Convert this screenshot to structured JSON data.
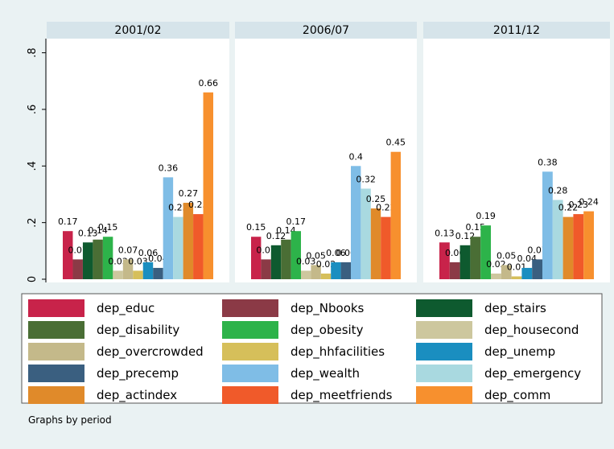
{
  "chart_data": {
    "type": "bar",
    "note": "Graphs by period",
    "legend": "bottom",
    "categories": [
      "2001/02",
      "2006/07",
      "2011/12"
    ],
    "ylim": [
      0,
      0.85
    ],
    "yticks": [
      {
        "value": 0,
        "label": "0"
      },
      {
        "value": 0.2,
        "label": ".2"
      },
      {
        "value": 0.4,
        "label": ".4"
      },
      {
        "value": 0.6,
        "label": ".6"
      },
      {
        "value": 0.8,
        "label": ".8"
      }
    ],
    "series": [
      {
        "name": "dep_educ",
        "color": "#c8234a",
        "values": [
          0.17,
          0.15,
          0.13
        ]
      },
      {
        "name": "dep_Nbooks",
        "color": "#8b3a46",
        "values": [
          0.07,
          0.07,
          0.06
        ]
      },
      {
        "name": "dep_stairs",
        "color": "#0e5a2f",
        "values": [
          0.13,
          0.12,
          0.12
        ]
      },
      {
        "name": "dep_disability",
        "color": "#4a6e35",
        "values": [
          0.14,
          0.14,
          0.15
        ]
      },
      {
        "name": "dep_obesity",
        "color": "#2db34a",
        "values": [
          0.15,
          0.17,
          0.19
        ]
      },
      {
        "name": "dep_housecond",
        "color": "#cdc79e",
        "values": [
          0.03,
          0.03,
          0.02
        ]
      },
      {
        "name": "dep_overcrowded",
        "color": "#c4b98a",
        "values": [
          0.07,
          0.05,
          0.05
        ]
      },
      {
        "name": "dep_hhfacilities",
        "color": "#d6bf5a",
        "values": [
          0.03,
          0.02,
          0.01
        ]
      },
      {
        "name": "dep_unemp",
        "color": "#1a8ec0",
        "values": [
          0.06,
          0.06,
          0.04
        ]
      },
      {
        "name": "dep_precemp",
        "color": "#3a5f80",
        "values": [
          0.04,
          0.06,
          0.07
        ]
      },
      {
        "name": "dep_wealth",
        "color": "#7fbde6",
        "values": [
          0.36,
          0.4,
          0.38
        ]
      },
      {
        "name": "dep_emergency",
        "color": "#a9d9e0",
        "values": [
          0.22,
          0.32,
          0.28
        ]
      },
      {
        "name": "dep_actindex",
        "color": "#e08a2a",
        "values": [
          0.27,
          0.25,
          0.22
        ]
      },
      {
        "name": "dep_meetfriends",
        "color": "#f05a2a",
        "values": [
          0.23,
          0.22,
          0.23
        ]
      },
      {
        "name": "dep_comm",
        "color": "#f7902e",
        "values": [
          0.66,
          0.45,
          0.24
        ]
      }
    ]
  }
}
